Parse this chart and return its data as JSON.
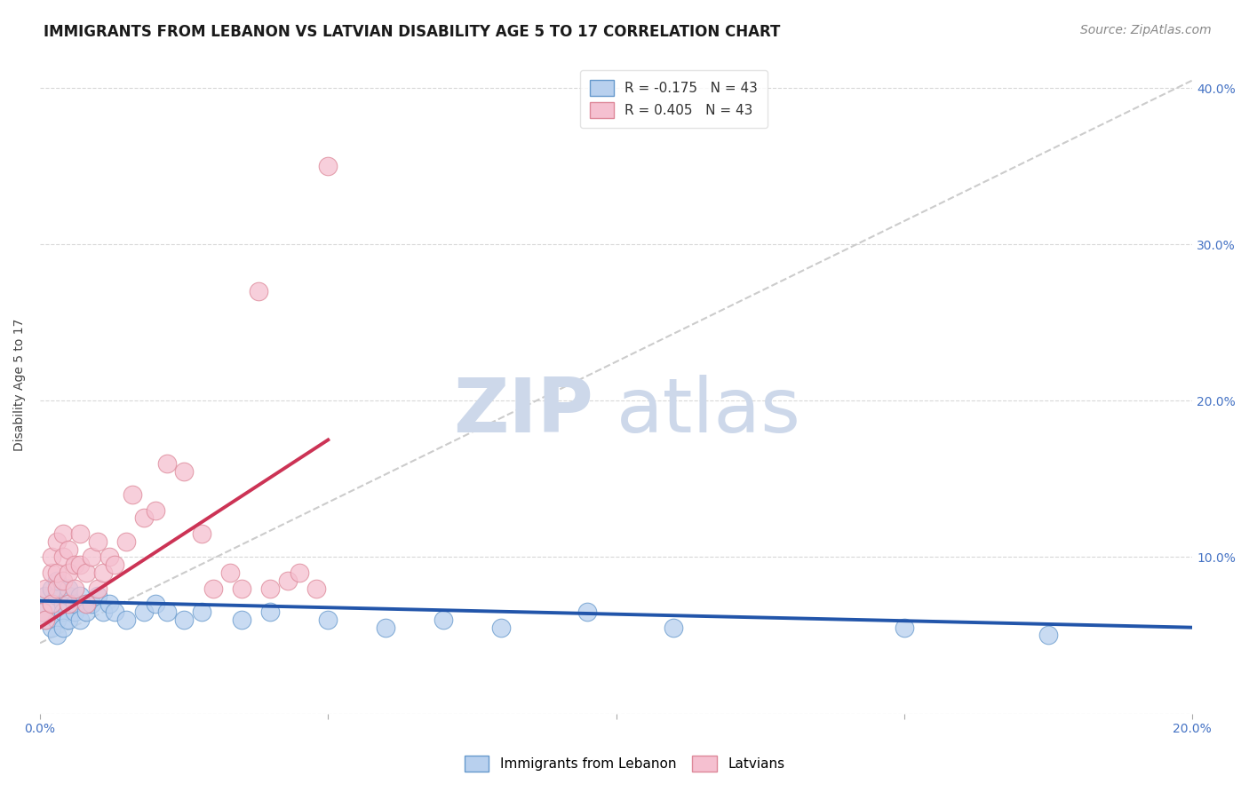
{
  "title": "IMMIGRANTS FROM LEBANON VS LATVIAN DISABILITY AGE 5 TO 17 CORRELATION CHART",
  "source": "Source: ZipAtlas.com",
  "ylabel": "Disability Age 5 to 17",
  "xlim": [
    0.0,
    0.2
  ],
  "ylim": [
    0.0,
    0.42
  ],
  "xticks": [
    0.0,
    0.05,
    0.1,
    0.15,
    0.2
  ],
  "xtick_labels": [
    "0.0%",
    "",
    "",
    "",
    "20.0%"
  ],
  "yticks": [
    0.0,
    0.1,
    0.2,
    0.3,
    0.4
  ],
  "ytick_labels": [
    "",
    "10.0%",
    "20.0%",
    "30.0%",
    "40.0%"
  ],
  "legend_label_blue": "R = -0.175   N = 43",
  "legend_label_pink": "R = 0.405   N = 43",
  "watermark_zip": "ZIP",
  "watermark_atlas": "atlas",
  "watermark_color": "#cdd8ea",
  "blue_scatter_x": [
    0.0005,
    0.001,
    0.001,
    0.002,
    0.002,
    0.002,
    0.003,
    0.003,
    0.003,
    0.003,
    0.004,
    0.004,
    0.004,
    0.005,
    0.005,
    0.005,
    0.006,
    0.006,
    0.007,
    0.007,
    0.008,
    0.008,
    0.009,
    0.01,
    0.011,
    0.012,
    0.013,
    0.015,
    0.018,
    0.02,
    0.022,
    0.025,
    0.028,
    0.035,
    0.04,
    0.05,
    0.06,
    0.07,
    0.08,
    0.095,
    0.11,
    0.15,
    0.175
  ],
  "blue_scatter_y": [
    0.065,
    0.075,
    0.06,
    0.08,
    0.055,
    0.07,
    0.075,
    0.06,
    0.085,
    0.05,
    0.07,
    0.065,
    0.055,
    0.075,
    0.06,
    0.08,
    0.065,
    0.07,
    0.075,
    0.06,
    0.07,
    0.065,
    0.07,
    0.075,
    0.065,
    0.07,
    0.065,
    0.06,
    0.065,
    0.07,
    0.065,
    0.06,
    0.065,
    0.06,
    0.065,
    0.06,
    0.055,
    0.06,
    0.055,
    0.065,
    0.055,
    0.055,
    0.05
  ],
  "pink_scatter_x": [
    0.0005,
    0.001,
    0.001,
    0.002,
    0.002,
    0.002,
    0.003,
    0.003,
    0.003,
    0.004,
    0.004,
    0.004,
    0.005,
    0.005,
    0.005,
    0.006,
    0.006,
    0.007,
    0.007,
    0.008,
    0.008,
    0.009,
    0.01,
    0.01,
    0.011,
    0.012,
    0.013,
    0.015,
    0.016,
    0.018,
    0.02,
    0.022,
    0.025,
    0.028,
    0.03,
    0.033,
    0.035,
    0.038,
    0.04,
    0.043,
    0.045,
    0.048,
    0.05
  ],
  "pink_scatter_y": [
    0.065,
    0.08,
    0.06,
    0.09,
    0.07,
    0.1,
    0.08,
    0.09,
    0.11,
    0.085,
    0.1,
    0.115,
    0.07,
    0.09,
    0.105,
    0.08,
    0.095,
    0.095,
    0.115,
    0.07,
    0.09,
    0.1,
    0.08,
    0.11,
    0.09,
    0.1,
    0.095,
    0.11,
    0.14,
    0.125,
    0.13,
    0.16,
    0.155,
    0.115,
    0.08,
    0.09,
    0.08,
    0.27,
    0.08,
    0.085,
    0.09,
    0.08,
    0.35
  ],
  "blue_line_x": [
    0.0,
    0.2
  ],
  "blue_line_y": [
    0.072,
    0.055
  ],
  "pink_line_x": [
    0.0,
    0.05
  ],
  "pink_line_y": [
    0.055,
    0.175
  ],
  "trendline_x": [
    0.0,
    0.2
  ],
  "trendline_y": [
    0.045,
    0.405
  ],
  "background_color": "#ffffff",
  "grid_color": "#d8d8d8",
  "title_fontsize": 12,
  "axis_label_fontsize": 10,
  "tick_fontsize": 10,
  "legend_fontsize": 11,
  "source_fontsize": 10,
  "title_color": "#1a1a1a",
  "tick_color": "#4472c4"
}
